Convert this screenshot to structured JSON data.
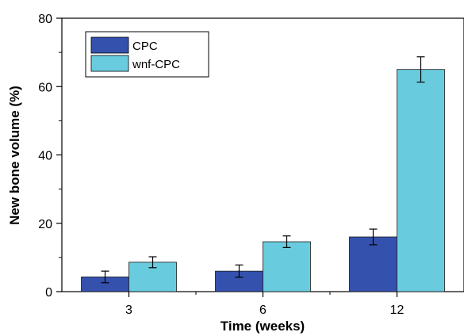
{
  "chart_data": {
    "type": "bar",
    "title": "",
    "xlabel": "Time (weeks)",
    "ylabel": "New bone volume (%)",
    "categories": [
      "3",
      "6",
      "12"
    ],
    "ylim": [
      0,
      80
    ],
    "yticks": [
      0,
      20,
      40,
      60,
      80
    ],
    "grid": false,
    "legend_position": "top-left",
    "series": [
      {
        "name": "CPC",
        "color": "#3451AE",
        "values": [
          4.3,
          6.0,
          16.0
        ],
        "errors": [
          1.7,
          1.8,
          2.3
        ]
      },
      {
        "name": "wnf-CPC",
        "color": "#69CCDE",
        "values": [
          8.6,
          14.6,
          65.0
        ],
        "errors": [
          1.6,
          1.7,
          3.7
        ]
      }
    ]
  }
}
